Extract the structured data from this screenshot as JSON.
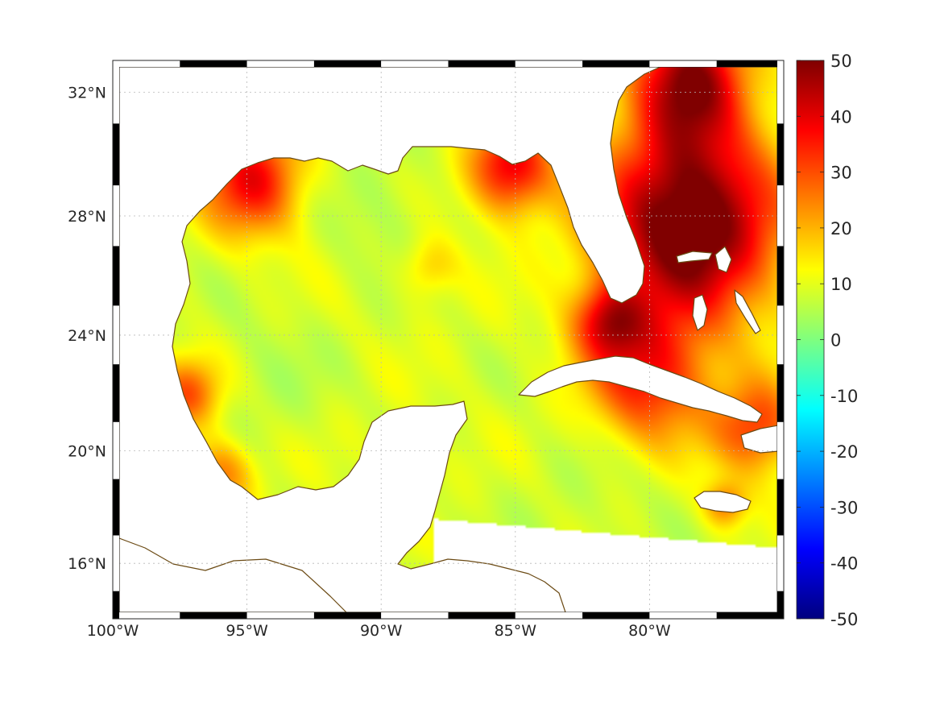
{
  "map": {
    "projection": "mercator",
    "extent": {
      "lon_min": -100,
      "lon_max": -75,
      "lat_min": 14,
      "lat_max": 33
    },
    "frame_style": "black-white-alternating",
    "grid": true,
    "land_color": "#ffffff",
    "coastline_color": "#6b4a14",
    "missing_data_color": "#ffffff",
    "x_ticks": [
      {
        "lon": -100,
        "label": "100°W"
      },
      {
        "lon": -95,
        "label": "95°W"
      },
      {
        "lon": -90,
        "label": "90°W"
      },
      {
        "lon": -85,
        "label": "85°W"
      },
      {
        "lon": -80,
        "label": "80°W"
      }
    ],
    "y_ticks": [
      {
        "lat": 32,
        "label": "32°N"
      },
      {
        "lat": 28,
        "label": "28°N"
      },
      {
        "lat": 24,
        "label": "24°N"
      },
      {
        "lat": 20,
        "label": "20°N"
      },
      {
        "lat": 16,
        "label": "16°N"
      }
    ],
    "field": {
      "background_value": 9,
      "hotspots": [
        {
          "name": "atlantic-east-of-florida",
          "lon": -78.5,
          "lat": 27.8,
          "value": 58,
          "radius_deg": 3.2
        },
        {
          "name": "northeast-coastal-atlantic",
          "lon": -78.5,
          "lat": 32.5,
          "value": 45,
          "radius_deg": 2.0
        },
        {
          "name": "florida-big-bend",
          "lon": -85.2,
          "lat": 29.6,
          "value": 40,
          "radius_deg": 1.5
        },
        {
          "name": "texas-louisiana-shelf",
          "lon": -94.8,
          "lat": 29.2,
          "value": 38,
          "radius_deg": 1.8
        },
        {
          "name": "north-of-cuba",
          "lon": -80.0,
          "lat": 22.5,
          "value": 35,
          "radius_deg": 2.2
        },
        {
          "name": "florida-keys",
          "lon": -81.5,
          "lat": 24.5,
          "value": 35,
          "radius_deg": 1.3
        },
        {
          "name": "windward-passage",
          "lon": -76.0,
          "lat": 20.8,
          "value": 32,
          "radius_deg": 1.6
        },
        {
          "name": "mexico-coast-west",
          "lon": -97.2,
          "lat": 22.0,
          "value": 30,
          "radius_deg": 1.2
        },
        {
          "name": "bay-of-campeche-south",
          "lon": -96.0,
          "lat": 19.2,
          "value": 26,
          "radius_deg": 1.2
        },
        {
          "name": "central-gulf-anomaly",
          "lon": -88.2,
          "lat": 26.3,
          "value": 19,
          "radius_deg": 1.0
        },
        {
          "name": "jamaica",
          "lon": -77.2,
          "lat": 18.1,
          "value": 26,
          "radius_deg": 0.8
        }
      ],
      "coolspots": [
        {
          "name": "north-central-gulf",
          "lon": -90.0,
          "lat": 28.3,
          "value": 4,
          "radius_deg": 2.2
        },
        {
          "name": "southwest-gulf",
          "lon": -94.5,
          "lat": 22.5,
          "value": 5,
          "radius_deg": 2.5
        },
        {
          "name": "caribbean-southeast",
          "lon": -82.0,
          "lat": 18.0,
          "value": 6,
          "radius_deg": 3.0
        }
      ]
    }
  },
  "colorbar": {
    "colormap": "jet",
    "min": -50,
    "max": 50,
    "ticks": [
      {
        "value": 50,
        "label": "50"
      },
      {
        "value": 40,
        "label": "40"
      },
      {
        "value": 30,
        "label": "30"
      },
      {
        "value": 20,
        "label": "20"
      },
      {
        "value": 10,
        "label": "10"
      },
      {
        "value": 0,
        "label": "0"
      },
      {
        "value": -10,
        "label": "-10"
      },
      {
        "value": -20,
        "label": "-20"
      },
      {
        "value": -30,
        "label": "-30"
      },
      {
        "value": -40,
        "label": "-40"
      },
      {
        "value": -50,
        "label": "-50"
      }
    ]
  }
}
